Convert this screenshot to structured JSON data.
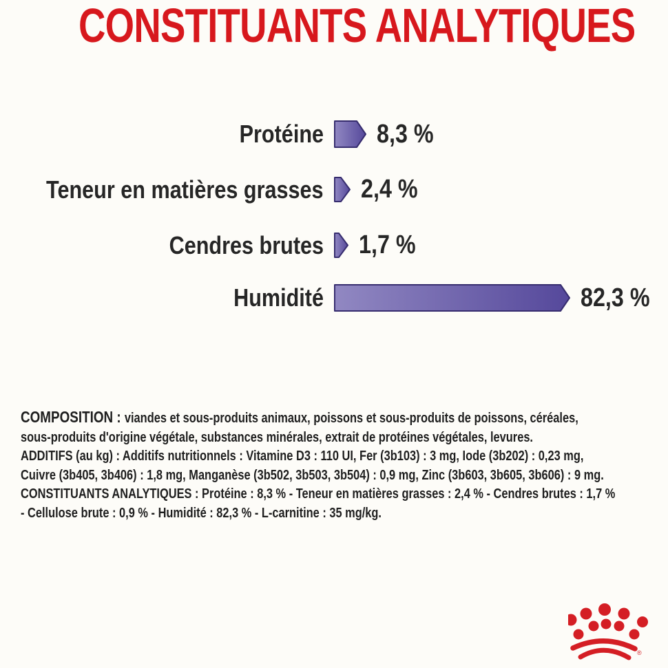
{
  "title": "CONSTITUANTS ANALYTIQUES",
  "colors": {
    "accent_red": "#d7181d",
    "bar_fill_light": "#9188c2",
    "bar_fill_dark": "#55489b",
    "bar_border": "#362c6e",
    "text_dark": "#262626",
    "background": "#fdfcf8"
  },
  "chart_data": {
    "type": "bar",
    "orientation": "horizontal",
    "title": "CONSTITUANTS ANALYTIQUES",
    "categories": [
      "Protéine",
      "Teneur en matières grasses",
      "Cendres brutes",
      "Humidité"
    ],
    "values": [
      8.3,
      2.4,
      1.7,
      82.3
    ],
    "value_labels": [
      "8,3 %",
      "2,4 %",
      "1,7 %",
      "82,3 %"
    ],
    "unit": "%",
    "xlim": [
      0,
      100
    ],
    "grid": "off",
    "legend": "none",
    "bar_style": "right-pointing arrow pentagon, purple gradient with dark outline"
  },
  "composition": {
    "lines": [
      {
        "b": "COMPOSITION : ",
        "t": "viandes et sous-produits animaux, poissons et sous-produits de poissons, céréales,"
      },
      {
        "b": "",
        "t": "sous-produits d'origine végétale, substances minérales, extrait de protéines végétales, levures."
      },
      {
        "b": "",
        "t": "ADDITIFS (au kg) : Additifs nutritionnels : Vitamine D3 : 110 UI, Fer (3b103) : 3 mg, Iode (3b202) : 0,23 mg,"
      },
      {
        "b": "",
        "t": "Cuivre (3b405, 3b406) : 1,8 mg, Manganèse (3b502, 3b503, 3b504) : 0,9 mg, Zinc (3b603, 3b605, 3b606) : 9 mg."
      },
      {
        "b": "",
        "t": "CONSTITUANTS ANALYTIQUES : Protéine : 8,3 % - Teneur en matières grasses : 2,4 % - Cendres brutes : 1,7 %"
      },
      {
        "b": "",
        "t": "- Cellulose brute : 0,9 % - Humidité : 82,3 % - L-carnitine : 35 mg/kg."
      }
    ]
  },
  "logo": {
    "name": "Royal Canin crown",
    "color": "#d41e24",
    "registered_mark": "®"
  }
}
